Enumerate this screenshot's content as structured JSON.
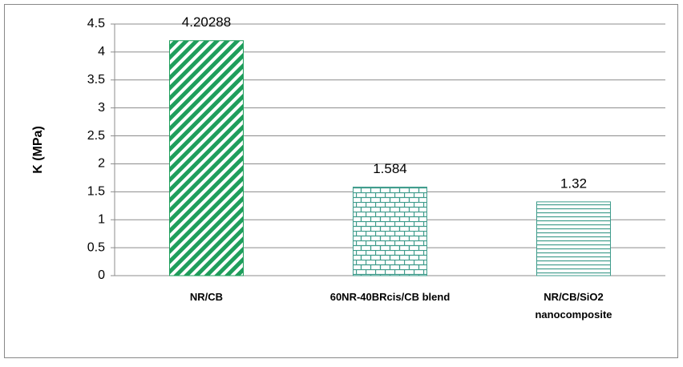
{
  "chart_data": {
    "type": "bar",
    "y_label": "K (MPa)",
    "categories": [
      "NR/CB",
      "60NR-40BRcis/CB blend",
      "NR/CB/SiO2 nanocomposite"
    ],
    "values": [
      4.20288,
      1.584,
      1.32
    ],
    "colors": [
      "#1f9e5c",
      "#3f9c8c",
      "#3f9c8c"
    ],
    "patterns": [
      "diagonal",
      "brick",
      "horizontal"
    ],
    "ylim": [
      0,
      4.5
    ],
    "yticks": [
      0,
      0.5,
      1,
      1.5,
      2,
      2.5,
      3,
      3.5,
      4,
      4.5
    ],
    "grid": true
  }
}
